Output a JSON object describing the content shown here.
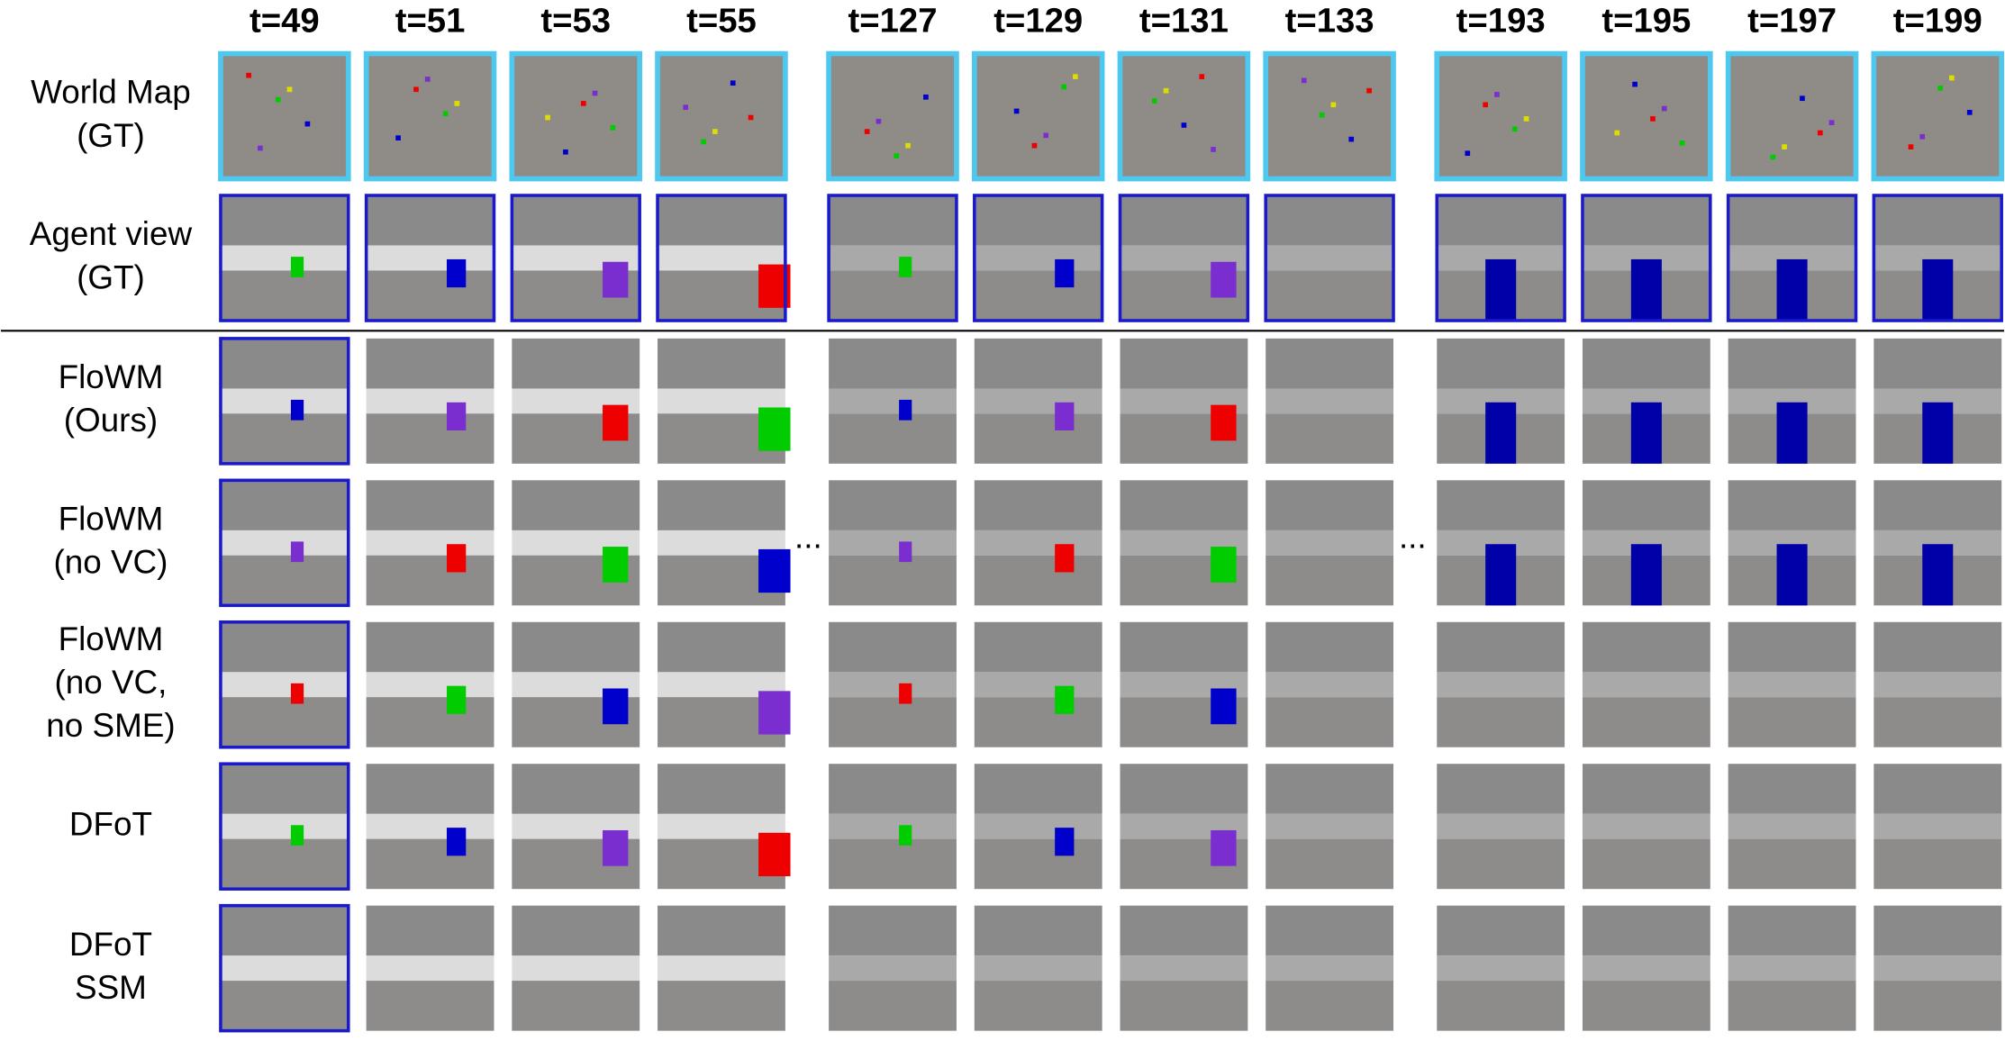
{
  "columns": [
    "t=49",
    "t=51",
    "t=53",
    "t=55",
    "t=127",
    "t=129",
    "t=131",
    "t=133",
    "t=193",
    "t=195",
    "t=197",
    "t=199"
  ],
  "ellipses": [
    "...",
    "..."
  ],
  "rows": [
    {
      "label": [
        "World Map",
        "(GT)"
      ]
    },
    {
      "label": [
        "Agent view",
        "(GT)"
      ]
    },
    {
      "label": [
        "FloWM",
        "(Ours)"
      ]
    },
    {
      "label": [
        "FloWM",
        "(no VC)"
      ]
    },
    {
      "label": [
        "FloWM",
        "(no VC,",
        "no SME)"
      ]
    },
    {
      "label": [
        "DFoT"
      ]
    },
    {
      "label": [
        "DFoT",
        "SSM"
      ]
    }
  ]
}
